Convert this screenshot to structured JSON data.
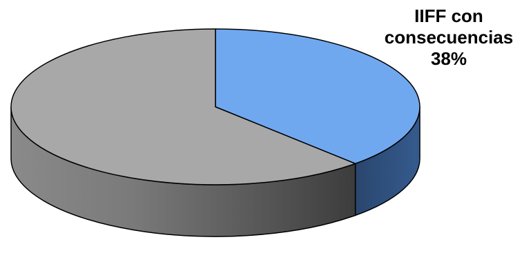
{
  "chart_data": {
    "type": "pie",
    "style": "3d",
    "slices": [
      {
        "label_lines": [
          "IIFF con",
          "consecuencias",
          "38%"
        ],
        "value": 38,
        "color": "#70A8F0",
        "side_color": "#2E4A72"
      },
      {
        "label_lines": [],
        "value": 62,
        "color": "#A8A8A8",
        "side_color": "#6E6E6E"
      }
    ],
    "legend": "none"
  }
}
